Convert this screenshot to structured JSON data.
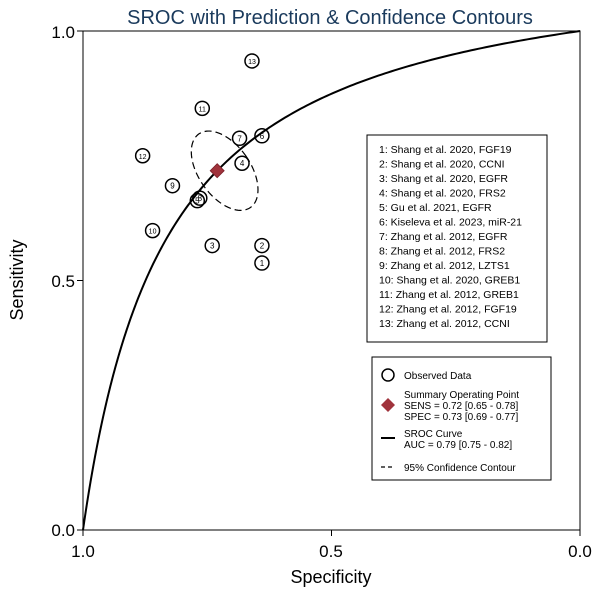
{
  "chart_data": {
    "type": "scatter",
    "title": "SROC with Prediction & Confidence Contours",
    "xlabel": "Specificity",
    "ylabel": "Sensitivity",
    "xlim": [
      1.0,
      0.0
    ],
    "ylim": [
      0.0,
      1.0
    ],
    "x_ticks": [
      "1.0",
      "0.5",
      "0.0"
    ],
    "y_ticks": [
      "0.0",
      "0.5",
      "1.0"
    ],
    "grid": false,
    "studies": [
      {
        "id": "1",
        "label": "1: Shang et al. 2020, FGF19",
        "specificity": 0.64,
        "sensitivity": 0.535
      },
      {
        "id": "2",
        "label": "2: Shang et al. 2020, CCNI",
        "specificity": 0.64,
        "sensitivity": 0.57
      },
      {
        "id": "3",
        "label": "3: Shang et al. 2020, EGFR",
        "specificity": 0.74,
        "sensitivity": 0.57
      },
      {
        "id": "4",
        "label": "4: Shang et al. 2020, FRS2",
        "specificity": 0.68,
        "sensitivity": 0.735
      },
      {
        "id": "5",
        "label": "5: Gu et al. 2021, EGFR",
        "specificity": 0.77,
        "sensitivity": 0.66
      },
      {
        "id": "6",
        "label": "6: Kiseleva et al. 2023, miR-21",
        "specificity": 0.64,
        "sensitivity": 0.79
      },
      {
        "id": "7",
        "label": "7: Zhang et al. 2012, EGFR",
        "specificity": 0.685,
        "sensitivity": 0.785
      },
      {
        "id": "8",
        "label": "8: Zhang et al. 2012, FRS2",
        "specificity": 0.765,
        "sensitivity": 0.665
      },
      {
        "id": "9",
        "label": "9: Zhang et al. 2012, LZTS1",
        "specificity": 0.82,
        "sensitivity": 0.69
      },
      {
        "id": "10",
        "label": "10: Shang et al. 2020, GREB1",
        "specificity": 0.86,
        "sensitivity": 0.6
      },
      {
        "id": "11",
        "label": "11: Zhang et al. 2012, GREB1",
        "specificity": 0.76,
        "sensitivity": 0.845
      },
      {
        "id": "12",
        "label": "12: Zhang et al. 2012, FGF19",
        "specificity": 0.88,
        "sensitivity": 0.75
      },
      {
        "id": "13",
        "label": "13: Zhang et al. 2012, CCNI",
        "specificity": 0.66,
        "sensitivity": 0.94
      }
    ],
    "summary_point": {
      "specificity": 0.73,
      "sensitivity": 0.72
    },
    "confidence_contour": {
      "center_specificity": 0.715,
      "center_sensitivity": 0.72,
      "half_width_specificity": 0.052,
      "half_height_sensitivity": 0.09,
      "tilt_deg": -35
    },
    "sroc_curve": {
      "auc": 0.79,
      "shape": "symmetric logistic SROC through summary point"
    },
    "legend": {
      "placement": "right",
      "items": [
        {
          "key": "observed",
          "label": "Observed Data"
        },
        {
          "key": "summary",
          "label": "Summary Operating Point",
          "line2": "SENS = 0.72 [0.65 - 0.78]",
          "line3": "SPEC = 0.73 [0.69 - 0.77]"
        },
        {
          "key": "curve",
          "label": "SROC Curve",
          "line2": "AUC = 0.79 [0.75 - 0.82]"
        },
        {
          "key": "contour",
          "label": "95% Confidence Contour"
        }
      ]
    },
    "colors": {
      "axes": "#000000",
      "background": "#ffffff",
      "summary_marker": "#a0333c",
      "title": "#1a3a5c"
    }
  }
}
